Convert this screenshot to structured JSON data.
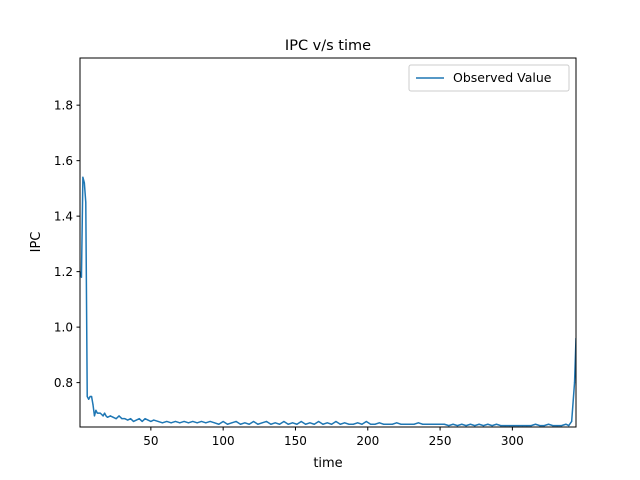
{
  "chart_data": {
    "type": "line",
    "title": "IPC v/s time",
    "xlabel": "time",
    "ylabel": "IPC",
    "xlim": [
      1,
      344
    ],
    "ylim": [
      0.64,
      1.97
    ],
    "xticks": [
      50,
      100,
      150,
      200,
      250,
      300
    ],
    "yticks": [
      0.8,
      1.0,
      1.2,
      1.4,
      1.6,
      1.8
    ],
    "xtick_labels": [
      "50",
      "100",
      "150",
      "200",
      "250",
      "300"
    ],
    "ytick_labels": [
      "0.8",
      "1.0",
      "1.2",
      "1.4",
      "1.6",
      "1.8"
    ],
    "grid": false,
    "legend_position": "top-right",
    "line_color": "#1f77b4",
    "series": [
      {
        "name": "Observed Value",
        "x": [
          1,
          2,
          3,
          4,
          5,
          6,
          7,
          8,
          9,
          10,
          11,
          12,
          13,
          14,
          15,
          16,
          17,
          18,
          19,
          20,
          22,
          24,
          26,
          28,
          30,
          32,
          34,
          36,
          38,
          40,
          42,
          44,
          46,
          48,
          50,
          52,
          55,
          58,
          61,
          64,
          67,
          70,
          73,
          76,
          79,
          82,
          85,
          88,
          91,
          94,
          97,
          100,
          103,
          106,
          109,
          112,
          115,
          118,
          121,
          124,
          127,
          130,
          133,
          136,
          139,
          142,
          145,
          148,
          151,
          154,
          157,
          160,
          163,
          166,
          169,
          172,
          175,
          178,
          181,
          184,
          187,
          190,
          193,
          196,
          199,
          202,
          205,
          208,
          211,
          214,
          217,
          220,
          223,
          226,
          229,
          232,
          235,
          238,
          241,
          244,
          247,
          250,
          253,
          256,
          259,
          262,
          265,
          268,
          271,
          274,
          277,
          280,
          283,
          286,
          289,
          292,
          295,
          298,
          301,
          304,
          307,
          310,
          313,
          316,
          319,
          322,
          325,
          328,
          331,
          334,
          337,
          339,
          341,
          343,
          344
        ],
        "y": [
          1.2,
          1.18,
          1.54,
          1.52,
          1.45,
          0.75,
          0.74,
          0.75,
          0.75,
          0.72,
          0.68,
          0.7,
          0.69,
          0.69,
          0.69,
          0.685,
          0.68,
          0.69,
          0.68,
          0.675,
          0.68,
          0.675,
          0.67,
          0.68,
          0.67,
          0.67,
          0.665,
          0.67,
          0.66,
          0.665,
          0.67,
          0.66,
          0.67,
          0.665,
          0.66,
          0.665,
          0.66,
          0.655,
          0.66,
          0.655,
          0.66,
          0.655,
          0.66,
          0.655,
          0.66,
          0.655,
          0.66,
          0.655,
          0.66,
          0.655,
          0.65,
          0.66,
          0.65,
          0.655,
          0.66,
          0.65,
          0.655,
          0.65,
          0.66,
          0.65,
          0.655,
          0.66,
          0.65,
          0.655,
          0.65,
          0.66,
          0.65,
          0.655,
          0.65,
          0.66,
          0.65,
          0.655,
          0.65,
          0.66,
          0.65,
          0.655,
          0.65,
          0.66,
          0.65,
          0.655,
          0.65,
          0.65,
          0.655,
          0.65,
          0.66,
          0.65,
          0.65,
          0.655,
          0.65,
          0.65,
          0.65,
          0.655,
          0.65,
          0.65,
          0.65,
          0.65,
          0.655,
          0.65,
          0.65,
          0.65,
          0.65,
          0.65,
          0.65,
          0.645,
          0.65,
          0.645,
          0.65,
          0.645,
          0.65,
          0.645,
          0.65,
          0.645,
          0.65,
          0.645,
          0.65,
          0.645,
          0.645,
          0.645,
          0.645,
          0.645,
          0.645,
          0.645,
          0.645,
          0.65,
          0.645,
          0.645,
          0.65,
          0.645,
          0.645,
          0.645,
          0.65,
          0.645,
          0.66,
          0.8,
          0.96
        ]
      }
    ]
  }
}
